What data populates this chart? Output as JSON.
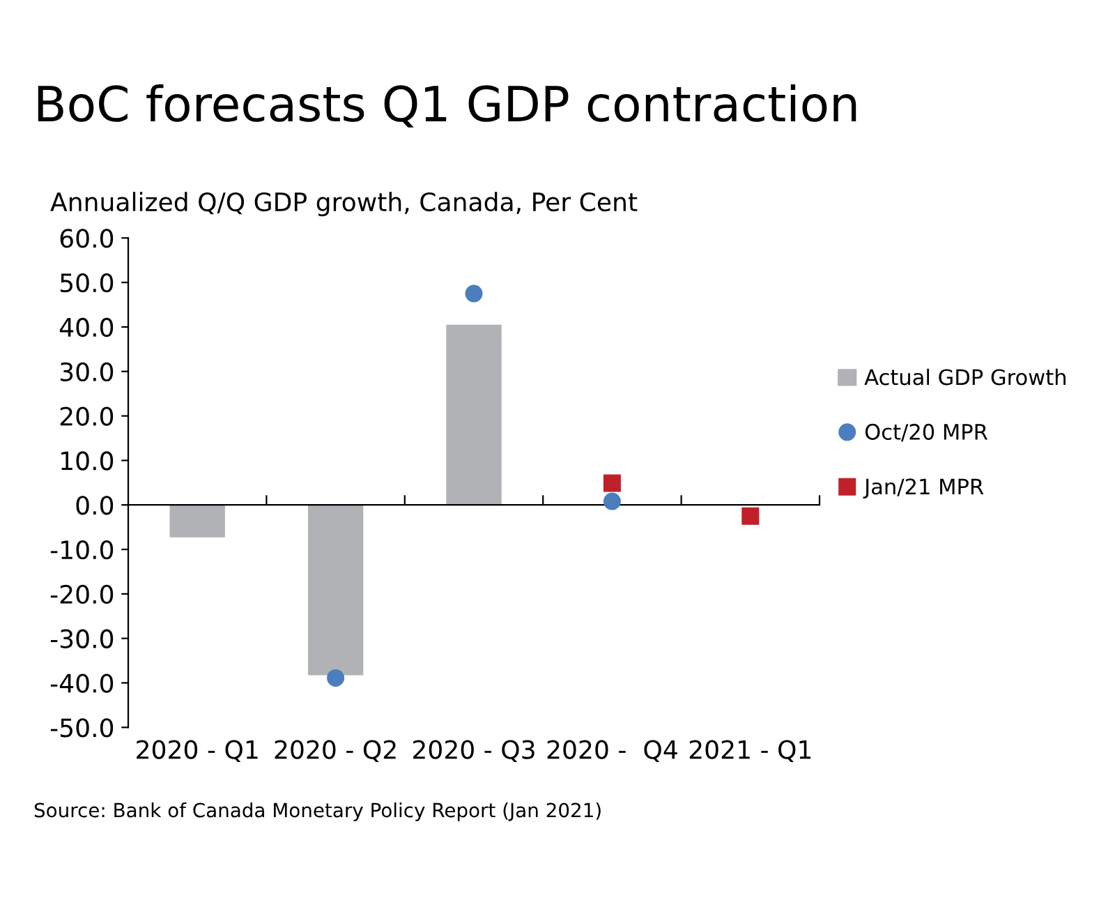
{
  "chart_data": {
    "type": "bar",
    "title": "BoC forecasts Q1 GDP contraction",
    "subtitle": "Annualized Q/Q GDP growth, Canada, Per Cent",
    "categories": [
      "2020 - Q1",
      "2020 - Q2",
      "2020 - Q3",
      "2020 -  Q4",
      "2021 - Q1"
    ],
    "series": [
      {
        "name": "Actual GDP Growth",
        "color": "#b1b2b5",
        "values": [
          -7.3,
          -38.3,
          40.5,
          null,
          null
        ]
      },
      {
        "name": "Oct/20 MPR",
        "type": "scatter",
        "marker": "circle",
        "color": "#4a7ebf",
        "values": [
          null,
          -38.9,
          47.5,
          0.8,
          null
        ]
      },
      {
        "name": "Jan/21 MPR",
        "type": "scatter",
        "marker": "square",
        "color": "#c0202a",
        "values": [
          null,
          null,
          null,
          4.9,
          -2.5
        ]
      }
    ],
    "ylim": [
      -50,
      60
    ],
    "yticks": [
      {
        "value": -50,
        "label": "-50.0"
      },
      {
        "value": -40,
        "label": "-40.0"
      },
      {
        "value": -30,
        "label": "-30.0"
      },
      {
        "value": -20,
        "label": "-20.0"
      },
      {
        "value": -10,
        "label": "-10.0"
      },
      {
        "value": 0,
        "label": "0.0"
      },
      {
        "value": 10,
        "label": "10.0"
      },
      {
        "value": 20,
        "label": "20.0"
      },
      {
        "value": 30,
        "label": "30.0"
      },
      {
        "value": 40,
        "label": "40.0"
      },
      {
        "value": 50,
        "label": "50.0"
      },
      {
        "value": 60,
        "label": "60.0"
      }
    ],
    "legend": "right",
    "annotations": [
      "Source: Bank of Canada Monetary Policy Report (Jan 2021)"
    ]
  }
}
